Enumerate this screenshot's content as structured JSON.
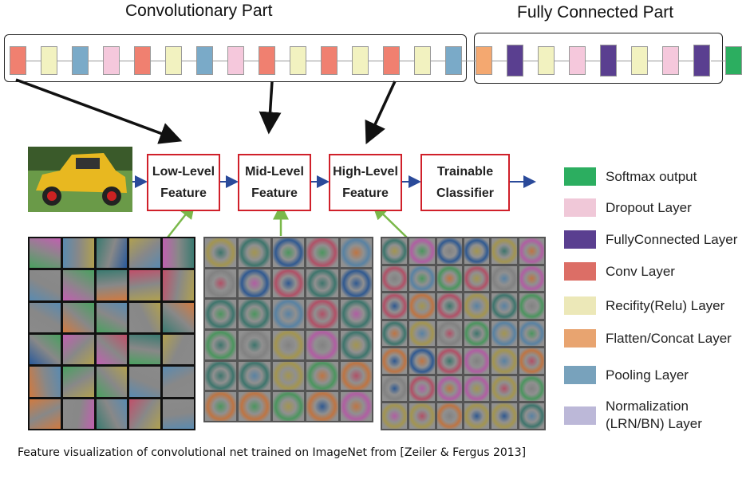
{
  "titles": {
    "conv_part": "Convolutionary Part",
    "fc_part": "Fully Connected Part"
  },
  "colors": {
    "conv": "#f08070",
    "relu": "#f2f2c0",
    "pool": "#7aaac8",
    "dropout": "#f5c8dc",
    "flatten": "#f4a870",
    "fc": "#5a3f90",
    "softmax": "#2cae60",
    "norm": "#bcb8d8",
    "stage_border": "#d0202a",
    "flow_arrow": "#2a4a9a",
    "feature_link": "#7ab84a"
  },
  "layers": [
    "conv",
    "relu",
    "pool",
    "dropout",
    "conv",
    "relu",
    "pool",
    "dropout",
    "conv",
    "relu",
    "conv",
    "relu",
    "conv",
    "relu",
    "pool",
    "flatten",
    "fc",
    "relu",
    "dropout",
    "fc",
    "relu",
    "dropout",
    "fc",
    "softmax"
  ],
  "stages": [
    {
      "line1": "Low-Level",
      "line2": "Feature"
    },
    {
      "line1": "Mid-Level",
      "line2": "Feature"
    },
    {
      "line1": "High-Level",
      "line2": "Feature"
    },
    {
      "line1": "Trainable",
      "line2": "Classifier"
    }
  ],
  "legend": [
    {
      "label": "Softmax output",
      "color": "#2cae60"
    },
    {
      "label": "Dropout Layer",
      "color": "#f0c8d8"
    },
    {
      "label": "FullyConnected Layer",
      "color": "#5a3f90"
    },
    {
      "label": "Conv Layer",
      "color": "#dc6e66"
    },
    {
      "label": "Recifity(Relu) Layer",
      "color": "#ece8b8"
    },
    {
      "label": "Flatten/Concat Layer",
      "color": "#e8a470"
    },
    {
      "label": "Pooling Layer",
      "color": "#78a2bc"
    },
    {
      "label": "Normalization\n(LRN/BN) Layer",
      "color": "#bcb8d8"
    }
  ],
  "caption": "Feature visualization of convolutional net trained on ImageNet from [Zeiler & Fergus 2013]"
}
